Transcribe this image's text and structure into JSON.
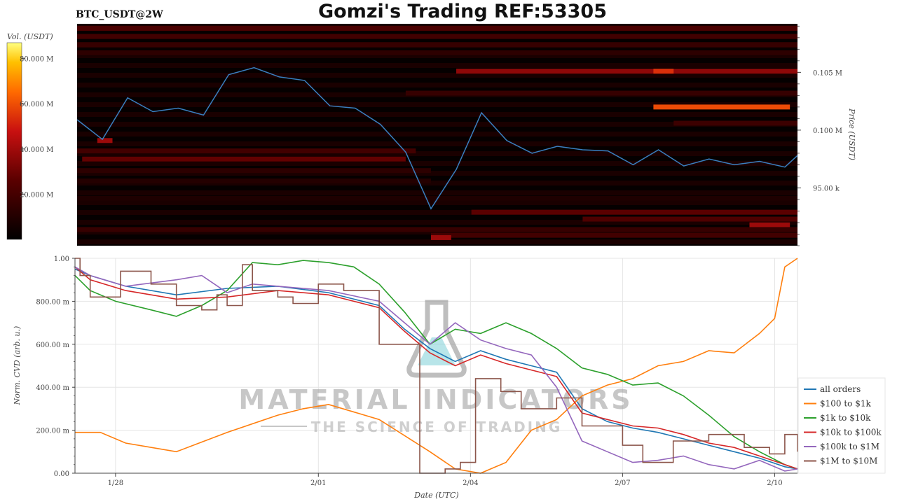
{
  "header": {
    "title": "Gomzi's Trading REF:53305",
    "symbol": "BTC_USDT@2W"
  },
  "watermark": {
    "brand": "MATERIAL INDICATORS",
    "tagline": "THE SCIENCE OF TRADING"
  },
  "colors": {
    "price_line": "#3a7fc0",
    "heatmap_low": "#000000",
    "heatmap_high": "#ffff66"
  },
  "chart_data": [
    {
      "type": "heatmap",
      "subtitle": "BTC_USDT@2W",
      "colorbar": {
        "label": "Vol. (USDT)",
        "ticks": [
          "20.000 M",
          "40.000 M",
          "60.000 M",
          "80.000 M"
        ],
        "tick_values": [
          20000000,
          40000000,
          60000000,
          80000000
        ],
        "range": [
          0,
          87000000
        ]
      },
      "ylabel": "Price (USDT)",
      "y_ticks": [
        "95.00 k",
        "0.100 M",
        "0.105 M"
      ],
      "y_tick_values": [
        95000,
        100000,
        105000
      ],
      "ylim": [
        90000,
        109200
      ],
      "xlim": [
        0,
        14.25
      ],
      "price_series": {
        "x": [
          0,
          0.5,
          1,
          1.5,
          2,
          2.5,
          3,
          3.5,
          4,
          4.5,
          5,
          5.5,
          6,
          6.5,
          7,
          7.5,
          8,
          8.5,
          9,
          9.5,
          10,
          10.5,
          11,
          11.5,
          12,
          12.5,
          13,
          13.5,
          14,
          14.25
        ],
        "y": [
          100900,
          99200,
          102800,
          101600,
          101900,
          101300,
          104800,
          105400,
          104600,
          104300,
          102100,
          101900,
          100500,
          98100,
          93200,
          96600,
          101500,
          99100,
          98000,
          98600,
          98300,
          98200,
          97000,
          98300,
          96900,
          97500,
          97000,
          97300,
          96800,
          97800
        ]
      },
      "bands": [
        {
          "price": 108800,
          "start": 0,
          "end": 14.25,
          "intensity": 0.25
        },
        {
          "price": 108100,
          "start": 0,
          "end": 14.25,
          "intensity": 0.22
        },
        {
          "price": 107400,
          "start": 0,
          "end": 14.25,
          "intensity": 0.18
        },
        {
          "price": 106700,
          "start": 0,
          "end": 14.25,
          "intensity": 0.15
        },
        {
          "price": 105100,
          "start": 7.5,
          "end": 14.25,
          "intensity": 0.42
        },
        {
          "price": 105100,
          "start": 11.4,
          "end": 11.8,
          "intensity": 0.62
        },
        {
          "price": 102000,
          "start": 11.4,
          "end": 14.1,
          "intensity": 0.68
        },
        {
          "price": 103200,
          "start": 6.5,
          "end": 14.25,
          "intensity": 0.18
        },
        {
          "price": 100600,
          "start": 11.8,
          "end": 14.25,
          "intensity": 0.2
        },
        {
          "price": 99100,
          "start": 0.4,
          "end": 0.7,
          "intensity": 0.45
        },
        {
          "price": 98200,
          "start": 0,
          "end": 6.7,
          "intensity": 0.22
        },
        {
          "price": 97500,
          "start": 0.1,
          "end": 6.5,
          "intensity": 0.32
        },
        {
          "price": 96500,
          "start": 0,
          "end": 7.0,
          "intensity": 0.15
        },
        {
          "price": 95600,
          "start": 0,
          "end": 7.0,
          "intensity": 0.12
        },
        {
          "price": 94100,
          "start": 0,
          "end": 14.25,
          "intensity": 0.1
        },
        {
          "price": 92900,
          "start": 7.8,
          "end": 14.25,
          "intensity": 0.3
        },
        {
          "price": 92300,
          "start": 10.0,
          "end": 14.25,
          "intensity": 0.26
        },
        {
          "price": 91800,
          "start": 13.3,
          "end": 14.1,
          "intensity": 0.45
        },
        {
          "price": 91400,
          "start": 0,
          "end": 14.25,
          "intensity": 0.18
        },
        {
          "price": 90900,
          "start": 7.0,
          "end": 14.25,
          "intensity": 0.22
        },
        {
          "price": 90700,
          "start": 7.0,
          "end": 7.4,
          "intensity": 0.45
        }
      ]
    },
    {
      "type": "line",
      "xlabel": "Date (UTC)",
      "ylabel": "Norm. CVD (arb. u.)",
      "x_ticks": [
        "1/28",
        "2/01",
        "2/04",
        "2/07",
        "2/10"
      ],
      "x_tick_values": [
        0.8,
        4.8,
        7.8,
        10.8,
        13.8
      ],
      "xlim": [
        0,
        14.25
      ],
      "y_ticks": [
        "0.00",
        "200.00 m",
        "400.00 m",
        "600.00 m",
        "800.00 m",
        "1.00"
      ],
      "y_tick_values": [
        0,
        0.2,
        0.4,
        0.6,
        0.8,
        1.0
      ],
      "ylim": [
        0,
        1.0
      ],
      "grid": true,
      "legend_position": "bottom-right",
      "series": [
        {
          "name": "all orders",
          "color": "#1f77b4",
          "step": false,
          "x": [
            0,
            0.3,
            1,
            2,
            3,
            4,
            5,
            6,
            6.5,
            7,
            7.5,
            8,
            8.5,
            9,
            9.5,
            10,
            10.5,
            11,
            11.5,
            12,
            12.5,
            13,
            13.5,
            14,
            14.25
          ],
          "y": [
            0.95,
            0.92,
            0.87,
            0.83,
            0.86,
            0.87,
            0.84,
            0.78,
            0.67,
            0.58,
            0.52,
            0.57,
            0.53,
            0.5,
            0.47,
            0.3,
            0.24,
            0.21,
            0.19,
            0.16,
            0.13,
            0.1,
            0.07,
            0.03,
            0.02
          ]
        },
        {
          "name": "$100 to $1k",
          "color": "#ff7f0e",
          "step": false,
          "x": [
            0,
            0.5,
            1,
            2,
            3,
            4,
            4.5,
            5,
            6,
            7,
            7.5,
            8,
            8.5,
            9,
            9.5,
            10,
            10.5,
            11,
            11.5,
            12,
            12.5,
            13,
            13.5,
            13.8,
            14,
            14.25
          ],
          "y": [
            0.19,
            0.19,
            0.14,
            0.1,
            0.19,
            0.27,
            0.3,
            0.32,
            0.25,
            0.1,
            0.02,
            0.0,
            0.05,
            0.2,
            0.25,
            0.36,
            0.41,
            0.44,
            0.5,
            0.52,
            0.57,
            0.56,
            0.65,
            0.72,
            0.96,
            1.0
          ]
        },
        {
          "name": "$1k to $10k",
          "color": "#2ca02c",
          "step": false,
          "x": [
            0,
            0.3,
            0.8,
            1.5,
            2,
            2.5,
            3,
            3.5,
            4,
            4.5,
            5,
            5.5,
            6,
            6.5,
            7,
            7.5,
            8,
            8.5,
            9,
            9.5,
            10,
            10.5,
            11,
            11.5,
            12,
            12.5,
            13,
            13.5,
            14,
            14.25
          ],
          "y": [
            0.92,
            0.85,
            0.8,
            0.76,
            0.73,
            0.78,
            0.85,
            0.98,
            0.97,
            0.99,
            0.98,
            0.96,
            0.88,
            0.75,
            0.6,
            0.67,
            0.65,
            0.7,
            0.65,
            0.58,
            0.49,
            0.46,
            0.41,
            0.42,
            0.36,
            0.27,
            0.17,
            0.1,
            0.04,
            0.02
          ]
        },
        {
          "name": "$10k to $100k",
          "color": "#d62728",
          "step": false,
          "x": [
            0,
            0.3,
            1,
            2,
            3,
            4,
            5,
            6,
            6.5,
            7,
            7.5,
            8,
            8.5,
            9,
            9.5,
            10,
            10.5,
            11,
            11.5,
            12,
            12.5,
            13,
            13.5,
            14,
            14.25
          ],
          "y": [
            0.96,
            0.9,
            0.85,
            0.81,
            0.82,
            0.85,
            0.83,
            0.77,
            0.66,
            0.56,
            0.5,
            0.55,
            0.51,
            0.48,
            0.45,
            0.28,
            0.25,
            0.22,
            0.21,
            0.18,
            0.14,
            0.12,
            0.08,
            0.04,
            0.02
          ]
        },
        {
          "name": "$100k to $1M",
          "color": "#9467bd",
          "step": false,
          "x": [
            0,
            0.3,
            1,
            2,
            2.5,
            3,
            3.5,
            4,
            5,
            6,
            6.5,
            7,
            7.5,
            8,
            8.5,
            9,
            9.5,
            10,
            10.5,
            11,
            11.5,
            12,
            12.5,
            13,
            13.5,
            14,
            14.25
          ],
          "y": [
            0.96,
            0.92,
            0.87,
            0.9,
            0.92,
            0.84,
            0.88,
            0.87,
            0.85,
            0.8,
            0.7,
            0.6,
            0.7,
            0.62,
            0.58,
            0.55,
            0.4,
            0.15,
            0.1,
            0.05,
            0.06,
            0.08,
            0.04,
            0.02,
            0.06,
            0.01,
            0.02
          ]
        },
        {
          "name": "$1M to $10M",
          "color": "#8c564b",
          "step": true,
          "x": [
            0,
            0.1,
            0.3,
            0.9,
            1.5,
            2.0,
            2.5,
            2.8,
            3.0,
            3.3,
            3.5,
            4.0,
            4.3,
            4.8,
            5.3,
            6.0,
            6.4,
            6.8,
            7.0,
            7.3,
            7.6,
            7.9,
            8.4,
            8.8,
            9.1,
            9.5,
            10.0,
            10.3,
            10.8,
            11.2,
            11.8,
            12.5,
            13.2,
            13.7,
            14.0,
            14.25
          ],
          "y": [
            1.0,
            0.92,
            0.82,
            0.94,
            0.88,
            0.78,
            0.76,
            0.83,
            0.78,
            0.97,
            0.85,
            0.82,
            0.79,
            0.88,
            0.85,
            0.6,
            0.6,
            0.0,
            0.0,
            0.02,
            0.05,
            0.44,
            0.38,
            0.3,
            0.3,
            0.35,
            0.22,
            0.22,
            0.13,
            0.05,
            0.15,
            0.18,
            0.12,
            0.09,
            0.18,
            0.1
          ]
        }
      ]
    }
  ]
}
